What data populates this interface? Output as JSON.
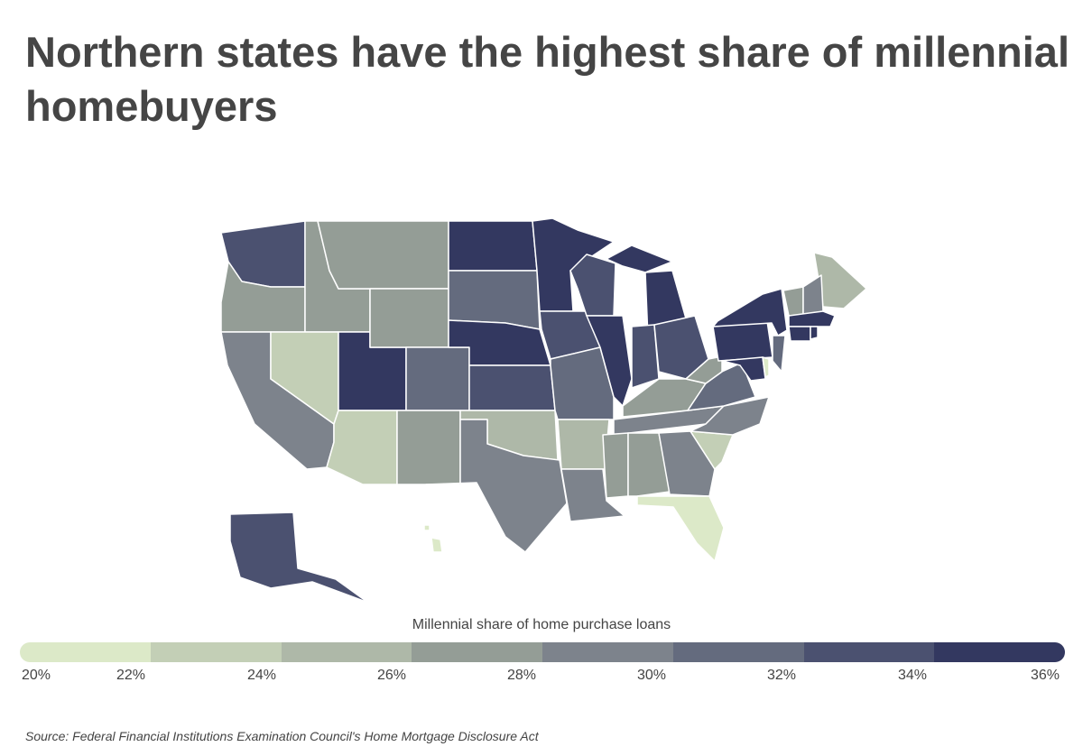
{
  "title": "Northern states have the highest share of millennial homebuyers",
  "legend": {
    "title": "Millennial share of home purchase loans",
    "ticks": [
      "20%",
      "22%",
      "24%",
      "26%",
      "28%",
      "30%",
      "32%",
      "34%",
      "36%"
    ],
    "colors": [
      "#dce9c8",
      "#c3cfb6",
      "#aeb8a8",
      "#949d96",
      "#7d838c",
      "#646b7e",
      "#4b5170",
      "#333860"
    ]
  },
  "source": "Source:  Federal Financial Institutions Examination Council's Home Mortgage Disclosure Act",
  "states": [
    {
      "abbr": "WA",
      "bin": 6
    },
    {
      "abbr": "OR",
      "bin": 3
    },
    {
      "abbr": "CA",
      "bin": 4
    },
    {
      "abbr": "ID",
      "bin": 3
    },
    {
      "abbr": "NV",
      "bin": 1
    },
    {
      "abbr": "UT",
      "bin": 7
    },
    {
      "abbr": "AZ",
      "bin": 1
    },
    {
      "abbr": "MT",
      "bin": 3
    },
    {
      "abbr": "WY",
      "bin": 3
    },
    {
      "abbr": "CO",
      "bin": 5
    },
    {
      "abbr": "NM",
      "bin": 3
    },
    {
      "abbr": "ND",
      "bin": 7
    },
    {
      "abbr": "SD",
      "bin": 5
    },
    {
      "abbr": "NE",
      "bin": 7
    },
    {
      "abbr": "KS",
      "bin": 6
    },
    {
      "abbr": "OK",
      "bin": 2
    },
    {
      "abbr": "TX",
      "bin": 4
    },
    {
      "abbr": "MN",
      "bin": 7
    },
    {
      "abbr": "IA",
      "bin": 6
    },
    {
      "abbr": "MO",
      "bin": 5
    },
    {
      "abbr": "AR",
      "bin": 2
    },
    {
      "abbr": "LA",
      "bin": 4
    },
    {
      "abbr": "WI",
      "bin": 6
    },
    {
      "abbr": "IL",
      "bin": 7
    },
    {
      "abbr": "MI",
      "bin": 7
    },
    {
      "abbr": "IN",
      "bin": 6
    },
    {
      "abbr": "OH",
      "bin": 6
    },
    {
      "abbr": "KY",
      "bin": 3
    },
    {
      "abbr": "TN",
      "bin": 4
    },
    {
      "abbr": "MS",
      "bin": 3
    },
    {
      "abbr": "AL",
      "bin": 3
    },
    {
      "abbr": "GA",
      "bin": 4
    },
    {
      "abbr": "FL",
      "bin": 0
    },
    {
      "abbr": "SC",
      "bin": 1
    },
    {
      "abbr": "NC",
      "bin": 4
    },
    {
      "abbr": "VA",
      "bin": 5
    },
    {
      "abbr": "WV",
      "bin": 3
    },
    {
      "abbr": "PA",
      "bin": 7
    },
    {
      "abbr": "NY",
      "bin": 7
    },
    {
      "abbr": "ME",
      "bin": 2
    },
    {
      "abbr": "VT",
      "bin": 3
    },
    {
      "abbr": "NH",
      "bin": 4
    },
    {
      "abbr": "MA",
      "bin": 7
    },
    {
      "abbr": "CT",
      "bin": 7
    },
    {
      "abbr": "RI",
      "bin": 7
    },
    {
      "abbr": "NJ",
      "bin": 5
    },
    {
      "abbr": "MD",
      "bin": 7
    },
    {
      "abbr": "DE",
      "bin": 0
    },
    {
      "abbr": "AK",
      "bin": 6
    },
    {
      "abbr": "HI",
      "bin": 0
    }
  ]
}
